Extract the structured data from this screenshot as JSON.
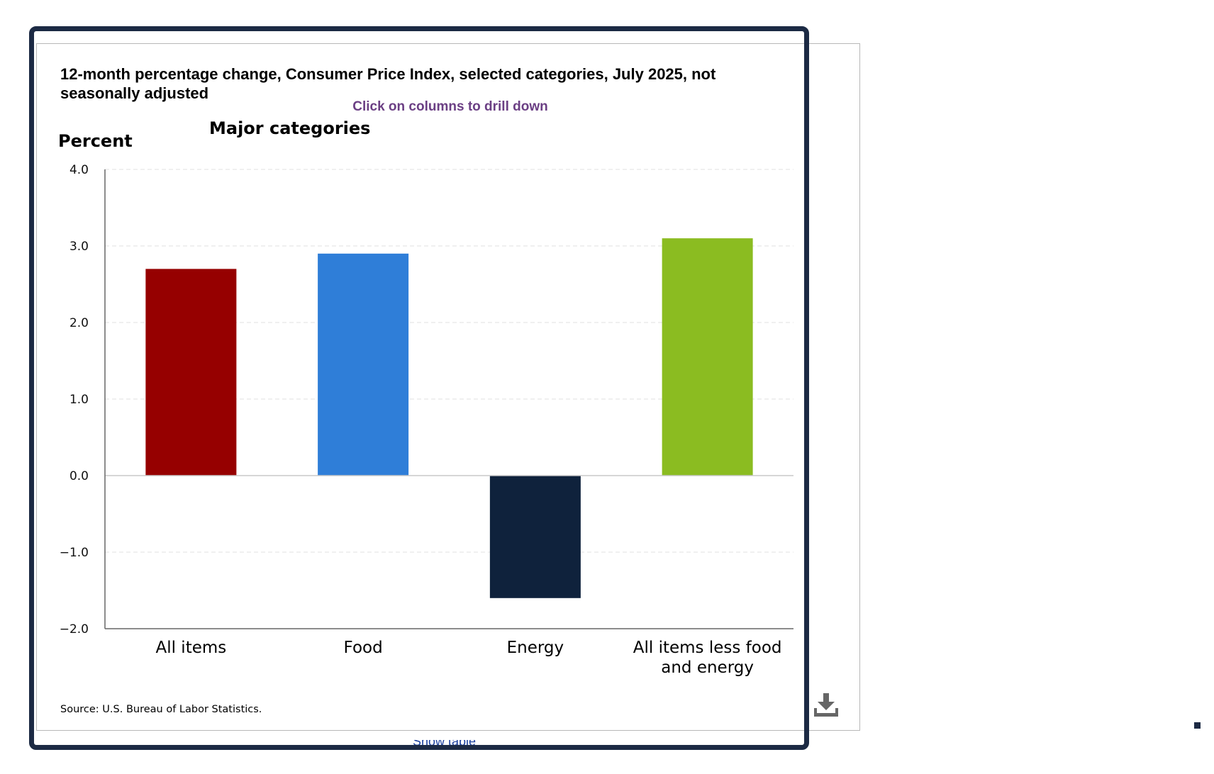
{
  "chart_data": {
    "type": "bar",
    "title": "12-month percentage change, Consumer Price Index, selected categories, July 2025, not seasonally adjusted",
    "hint": "Click on columns to drill down",
    "subtitle": "Major categories",
    "ylabel": "Percent",
    "xlabel": "",
    "ylim": [
      -2.0,
      4.0
    ],
    "yticks": [
      "4.0",
      "3.0",
      "2.0",
      "1.0",
      "0.0",
      "−1.0",
      "−2.0"
    ],
    "ytick_values": [
      4,
      3,
      2,
      1,
      0,
      -1,
      -2
    ],
    "grid": true,
    "legend": "none",
    "categories": [
      {
        "lines": [
          "All items"
        ]
      },
      {
        "lines": [
          "Food"
        ]
      },
      {
        "lines": [
          "Energy"
        ]
      },
      {
        "lines": [
          "All items less food",
          "and energy"
        ]
      }
    ],
    "values": [
      2.7,
      2.9,
      -1.6,
      3.1
    ],
    "colors": [
      "#960000",
      "#2f7ed8",
      "#0f223c",
      "#8bbc21"
    ],
    "source": "Source: U.S. Bureau of Labor Statistics."
  },
  "controls": {
    "download_icon": "download-icon",
    "partial_link": "Show table"
  }
}
